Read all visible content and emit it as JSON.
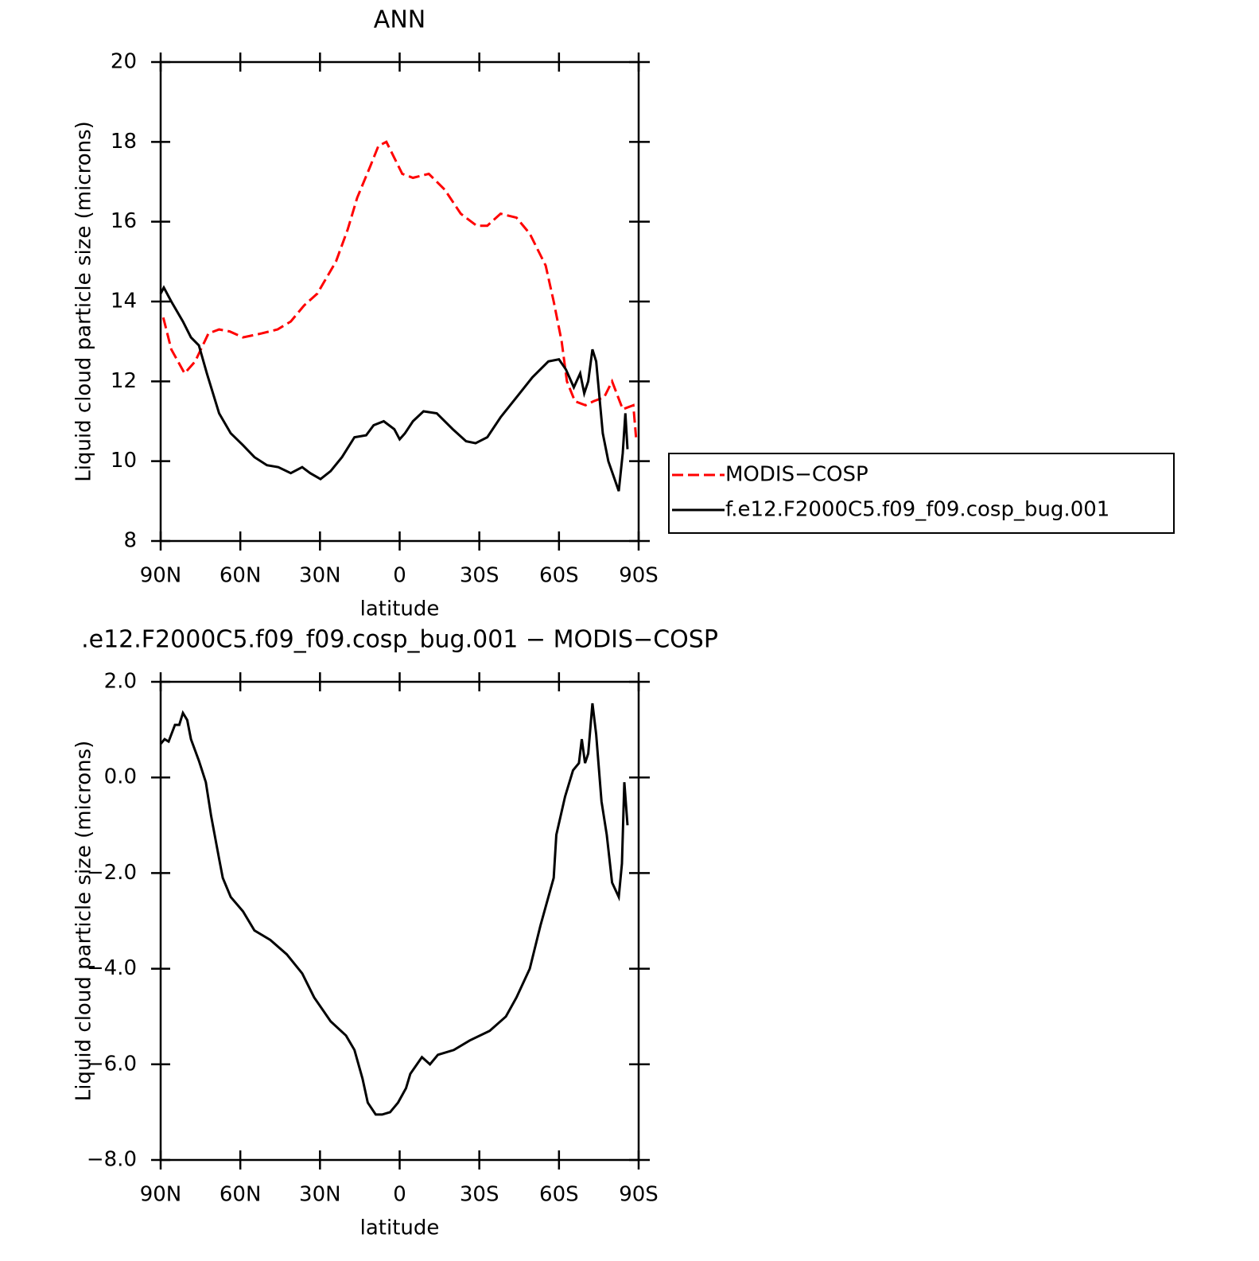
{
  "chart_data": [
    {
      "type": "line",
      "title": "ANN",
      "x_label": "latitude",
      "y_label": "Liquid cloud particle size (microns)",
      "xlim": [
        90,
        -90
      ],
      "xticks": [
        {
          "value": 90,
          "label": "90N"
        },
        {
          "value": 60,
          "label": "60N"
        },
        {
          "value": 30,
          "label": "30N"
        },
        0,
        {
          "value": -30,
          "label": "30S"
        },
        {
          "value": -60,
          "label": "60S"
        },
        {
          "value": -90,
          "label": "90S"
        }
      ],
      "ylim": [
        8,
        20
      ],
      "yticks": [
        8,
        10,
        12,
        14,
        16,
        18,
        20
      ],
      "legend": "right",
      "series": [
        {
          "name": "MODIS−COSP",
          "color": "#ff0000",
          "dash": true,
          "x": [
            89,
            86,
            81,
            77,
            72,
            68,
            64,
            59,
            52,
            46,
            41,
            36,
            31,
            24,
            19.6,
            16,
            11,
            8,
            5,
            2,
            -1,
            -5,
            -11,
            -17,
            -23,
            -29,
            -33,
            -38,
            -44,
            -49,
            -55,
            -58,
            -61,
            -63,
            -66,
            -70,
            -73,
            -77,
            -80,
            -84,
            -88,
            -89
          ],
          "values": [
            13.6,
            12.8,
            12.2,
            12.5,
            13.2,
            13.3,
            13.25,
            13.1,
            13.2,
            13.3,
            13.5,
            13.9,
            14.2,
            15.0,
            15.8,
            16.6,
            17.4,
            17.9,
            18.0,
            17.6,
            17.2,
            17.1,
            17.2,
            16.8,
            16.2,
            15.9,
            15.9,
            16.2,
            16.1,
            15.7,
            14.9,
            14.0,
            13.0,
            12.0,
            11.5,
            11.4,
            11.5,
            11.6,
            12.0,
            11.3,
            11.4,
            10.6
          ]
        },
        {
          "name": "f.e12.F2000C5.f09_f09.cosp_bug.001",
          "color": "#000000",
          "dash": false,
          "x": [
            90,
            88.8,
            86,
            81.6,
            78.6,
            75.6,
            72.6,
            68,
            63.6,
            59,
            54.7,
            50,
            45.7,
            41,
            36.7,
            33.7,
            29.8,
            26,
            21.7,
            17,
            12.6,
            9.8,
            6,
            2,
            0,
            -2,
            -5,
            -9,
            -14,
            -20,
            -25,
            -28.6,
            -33,
            -38,
            -44,
            -50,
            -56,
            -60,
            -62.6,
            -65.6,
            -68,
            -69.5,
            -71,
            -72.6,
            -74,
            -76.5,
            -78.6,
            -80.7,
            -82.5,
            -84,
            -85,
            -85.8
          ],
          "values": [
            14.2,
            14.35,
            14.0,
            13.5,
            13.1,
            12.9,
            12.2,
            11.2,
            10.7,
            10.4,
            10.1,
            9.9,
            9.85,
            9.7,
            9.85,
            9.7,
            9.55,
            9.75,
            10.1,
            10.6,
            10.65,
            10.9,
            11.0,
            10.8,
            10.55,
            10.7,
            11.0,
            11.25,
            11.2,
            10.8,
            10.5,
            10.45,
            10.6,
            11.1,
            11.6,
            12.1,
            12.5,
            12.55,
            12.3,
            11.85,
            12.2,
            11.7,
            12.0,
            12.8,
            12.5,
            10.7,
            10.0,
            9.6,
            9.25,
            10.2,
            11.2,
            10.3
          ]
        }
      ]
    },
    {
      "type": "line",
      "title": ".e12.F2000C5.f09_f09.cosp_bug.001 − MODIS−COSP",
      "x_label": "latitude",
      "y_label": "Liquid cloud particle size (microns)",
      "xlim": [
        90,
        -90
      ],
      "xticks": [
        {
          "value": 90,
          "label": "90N"
        },
        {
          "value": 60,
          "label": "60N"
        },
        {
          "value": 30,
          "label": "30N"
        },
        0,
        {
          "value": -30,
          "label": "30S"
        },
        {
          "value": -60,
          "label": "60S"
        },
        {
          "value": -90,
          "label": "90S"
        }
      ],
      "ylim": [
        -8,
        2
      ],
      "yticks": [
        {
          "value": -8,
          "label": "−8.0"
        },
        {
          "value": -6,
          "label": "−6.0"
        },
        {
          "value": -4,
          "label": "−4.0"
        },
        {
          "value": -2,
          "label": "−2.0"
        },
        {
          "value": 0,
          "label": "0.0"
        },
        {
          "value": 2,
          "label": "2.0"
        }
      ],
      "series": [
        {
          "color": "#000000",
          "dash": false,
          "x": [
            90,
            88.5,
            87,
            84.6,
            83,
            81.6,
            80,
            78.6,
            75.6,
            73,
            71,
            68,
            66.6,
            63.6,
            59,
            54.7,
            48.7,
            42.5,
            36.7,
            32.2,
            26,
            20.2,
            17,
            14,
            12,
            9,
            6.6,
            3.6,
            0.6,
            -2.4,
            -4,
            -8.4,
            -11.4,
            -14.4,
            -20.4,
            -26.4,
            -33.9,
            -40,
            -44,
            -49,
            -53,
            -58,
            -59,
            -62.3,
            -65.3,
            -67.5,
            -68.6,
            -69.8,
            -71,
            -72.6,
            -74,
            -76,
            -78,
            -80,
            -82.5,
            -83.7,
            -84.6,
            -85.8
          ],
          "values": [
            0.7,
            0.8,
            0.75,
            1.1,
            1.1,
            1.35,
            1.2,
            0.8,
            0.35,
            -0.1,
            -0.8,
            -1.7,
            -2.1,
            -2.5,
            -2.8,
            -3.2,
            -3.4,
            -3.7,
            -4.1,
            -4.6,
            -5.1,
            -5.4,
            -5.7,
            -6.3,
            -6.8,
            -7.05,
            -7.05,
            -7.0,
            -6.8,
            -6.5,
            -6.2,
            -5.85,
            -6.0,
            -5.8,
            -5.7,
            -5.5,
            -5.3,
            -5.0,
            -4.6,
            -4.0,
            -3.1,
            -2.1,
            -1.2,
            -0.4,
            0.15,
            0.3,
            0.8,
            0.3,
            0.5,
            1.55,
            0.9,
            -0.5,
            -1.2,
            -2.2,
            -2.5,
            -1.8,
            -0.1,
            -1.0
          ]
        }
      ]
    }
  ]
}
